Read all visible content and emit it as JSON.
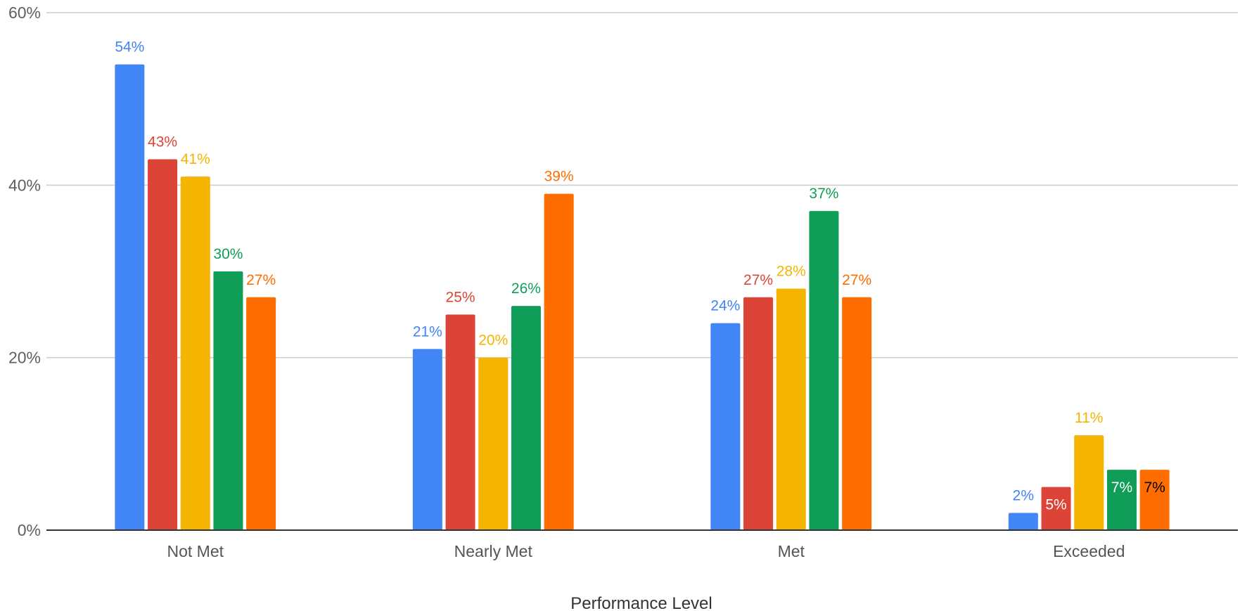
{
  "chart_data": {
    "type": "bar",
    "xlabel": "Performance Level",
    "ylabel": "",
    "ylim": [
      0,
      60
    ],
    "yticks": [
      "0%",
      "20%",
      "40%",
      "60%"
    ],
    "grid": true,
    "legend": "none",
    "categories": [
      "Not Met",
      "Nearly Met",
      "Met",
      "Exceeded"
    ],
    "series": [
      {
        "color": "#4285F4",
        "values": [
          54,
          21,
          24,
          2
        ],
        "labels": [
          "54%",
          "21%",
          "24%",
          "2%"
        ]
      },
      {
        "color": "#DB4437",
        "values": [
          43,
          25,
          27,
          5
        ],
        "labels": [
          "43%",
          "25%",
          "27%",
          "5%"
        ]
      },
      {
        "color": "#F4B400",
        "values": [
          41,
          20,
          28,
          11
        ],
        "labels": [
          "41%",
          "20%",
          "28%",
          "11%"
        ]
      },
      {
        "color": "#0F9D58",
        "values": [
          30,
          26,
          37,
          7
        ],
        "labels": [
          "30%",
          "26%",
          "37%",
          "7%"
        ]
      },
      {
        "color": "#FF6D00",
        "values": [
          27,
          39,
          27,
          7
        ],
        "labels": [
          "27%",
          "39%",
          "27%",
          "7%"
        ]
      }
    ]
  }
}
